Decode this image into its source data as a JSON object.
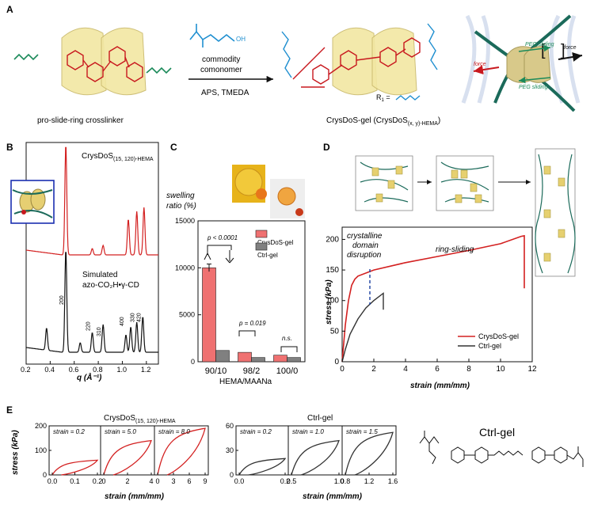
{
  "panelA": {
    "label": "A",
    "crosslinker_caption": "pro-slide-ring crosslinker",
    "arrow_top_1": "commodity",
    "arrow_top_2": "comonomer",
    "arrow_bottom": "APS, TMEDA",
    "product_caption": "CrysDoS-gel (CrysDoS",
    "product_caption_sub": "(x, y)-HEMA",
    "product_caption_end": ")",
    "r1_label": "R",
    "r1_sub": "1",
    "r1_eq": " =",
    "force_left": "force",
    "force_right": "force",
    "peg_top": "PEG sliding",
    "peg_bottom": "PEG sliding",
    "colors": {
      "crosslinker_green": "#1b8a5a",
      "azo_red": "#c8181e",
      "hema_blue": "#1f8fd0",
      "ring_yellow": "#f2e7a3"
    }
  },
  "panelB": {
    "label": "B",
    "red_trace_label": "CrysDoS",
    "red_trace_sub": "(15, 120)-HEMA",
    "sim_label_1": "Simulated",
    "sim_label_2": "azo-CO₂H•γ-CD",
    "peak_labels": [
      "200",
      "220",
      "310",
      "400",
      "330",
      "420"
    ],
    "x_axis_label": "q (Å⁻¹)",
    "chart_data": {
      "type": "line",
      "xlabel": "q (Å⁻¹)",
      "xlim": [
        0.2,
        1.3
      ],
      "xticks": [
        "0.2",
        "0.4",
        "0.6",
        "0.8",
        "1.0",
        "1.2"
      ],
      "series": [
        {
          "name": "CrysDoS(15, 120)-HEMA",
          "color": "#d32020",
          "peaks_q": [
            0.53,
            0.75,
            0.84,
            1.05,
            1.12,
            1.18
          ]
        },
        {
          "name": "Simulated azo-CO2H•γ-CD",
          "color": "#111111",
          "peaks_q": [
            0.37,
            0.53,
            0.65,
            0.75,
            0.84,
            1.03,
            1.07,
            1.12,
            1.17
          ]
        }
      ]
    }
  },
  "panelC": {
    "label": "C",
    "ylabel_1": "swelling",
    "ylabel_2": "ratio (%)",
    "xlabel": "HEMA/MAANa",
    "p_values": [
      "p < 0.0001",
      "p = 0.019",
      "n.s."
    ],
    "chart_data": {
      "type": "bar",
      "categories": [
        "90/10",
        "98/2",
        "100/0"
      ],
      "ylim": [
        0,
        15000
      ],
      "yticks": [
        "0",
        "5000",
        "10000",
        "15000"
      ],
      "series": [
        {
          "name": "CrysDoS-gel",
          "color": "#ef7171",
          "values": [
            10000,
            1000,
            700
          ],
          "errors": [
            400,
            0,
            0
          ]
        },
        {
          "name": "Ctrl-gel",
          "color": "#808080",
          "values": [
            1200,
            450,
            450
          ],
          "errors": [
            0,
            0,
            0
          ]
        }
      ],
      "legend_position": "top-right"
    }
  },
  "panelD": {
    "label": "D",
    "annot_crystal_1": "crystalline",
    "annot_crystal_2": "domain",
    "annot_crystal_3": "disruption",
    "annot_ring": "ring-sliding",
    "chart_data": {
      "type": "line",
      "xlabel": "strain (mm/mm)",
      "ylabel": "stress (kPa)",
      "xlim": [
        0,
        12
      ],
      "ylim": [
        0,
        220
      ],
      "xticks": [
        "0",
        "2",
        "4",
        "6",
        "8",
        "10",
        "12"
      ],
      "yticks": [
        "0",
        "50",
        "100",
        "150",
        "200"
      ],
      "legend_position": "bottom-right",
      "series": [
        {
          "name": "CrysDoS-gel",
          "color": "#d32020",
          "x": [
            0,
            0.2,
            0.4,
            0.6,
            0.8,
            1,
            2,
            4,
            6,
            8,
            10,
            11.3,
            11.5,
            11.5
          ],
          "y": [
            0,
            60,
            100,
            125,
            135,
            140,
            150,
            162,
            172,
            182,
            193,
            205,
            206,
            120
          ]
        },
        {
          "name": "Ctrl-gel",
          "color": "#333333",
          "x": [
            0,
            0.2,
            0.5,
            1,
            1.5,
            2,
            2.6,
            2.6
          ],
          "y": [
            0,
            20,
            45,
            70,
            88,
            100,
            112,
            85
          ]
        }
      ]
    }
  },
  "panelE": {
    "label": "E",
    "title_left": "CrysDoS",
    "title_left_sub": "(15, 120)-HEMA",
    "title_mid": "Ctrl-gel",
    "title_right": "Ctrl-gel",
    "stress_label": "stress (kPa)",
    "strain_label": "strain (mm/mm)",
    "chart_data": [
      {
        "type": "line",
        "group": "CrysDoS",
        "annotation": "strain = 0.2",
        "xlim": [
          0,
          0.2
        ],
        "ylim": [
          0,
          200
        ],
        "xticks": [
          "0.0",
          "0.1",
          "0.2"
        ],
        "yticks": [
          "0",
          "100",
          "200"
        ],
        "color": "#d32020",
        "peak_stress": 60
      },
      {
        "type": "line",
        "group": "CrysDoS",
        "annotation": "strain = 5.0",
        "xlim": [
          0,
          5
        ],
        "xticks": [
          "0",
          "2",
          "4"
        ],
        "color": "#d32020",
        "peak_stress": 140
      },
      {
        "type": "line",
        "group": "CrysDoS",
        "annotation": "strain = 8.0",
        "xlim": [
          0,
          8
        ],
        "xticks": [
          "0",
          "3",
          "6",
          "9"
        ],
        "color": "#d32020",
        "peak_stress": 190
      },
      {
        "type": "line",
        "group": "Ctrl-gel",
        "annotation": "strain = 0.2",
        "xlim": [
          0,
          0.2
        ],
        "ylim": [
          0,
          60
        ],
        "xticks": [
          "0.0",
          "0.2"
        ],
        "yticks": [
          "0",
          "30",
          "60"
        ],
        "color": "#333333",
        "peak_stress": 20
      },
      {
        "type": "line",
        "group": "Ctrl-gel",
        "annotation": "strain = 1.0",
        "xlim": [
          0,
          1
        ],
        "xticks": [
          "0.5",
          "1.0"
        ],
        "color": "#333333",
        "peak_stress": 42
      },
      {
        "type": "line",
        "group": "Ctrl-gel",
        "annotation": "strain = 1.5",
        "xlim": [
          0,
          1.5
        ],
        "xticks": [
          "0.8",
          "1.2",
          "1.6"
        ],
        "color": "#333333",
        "peak_stress": 52
      }
    ]
  }
}
